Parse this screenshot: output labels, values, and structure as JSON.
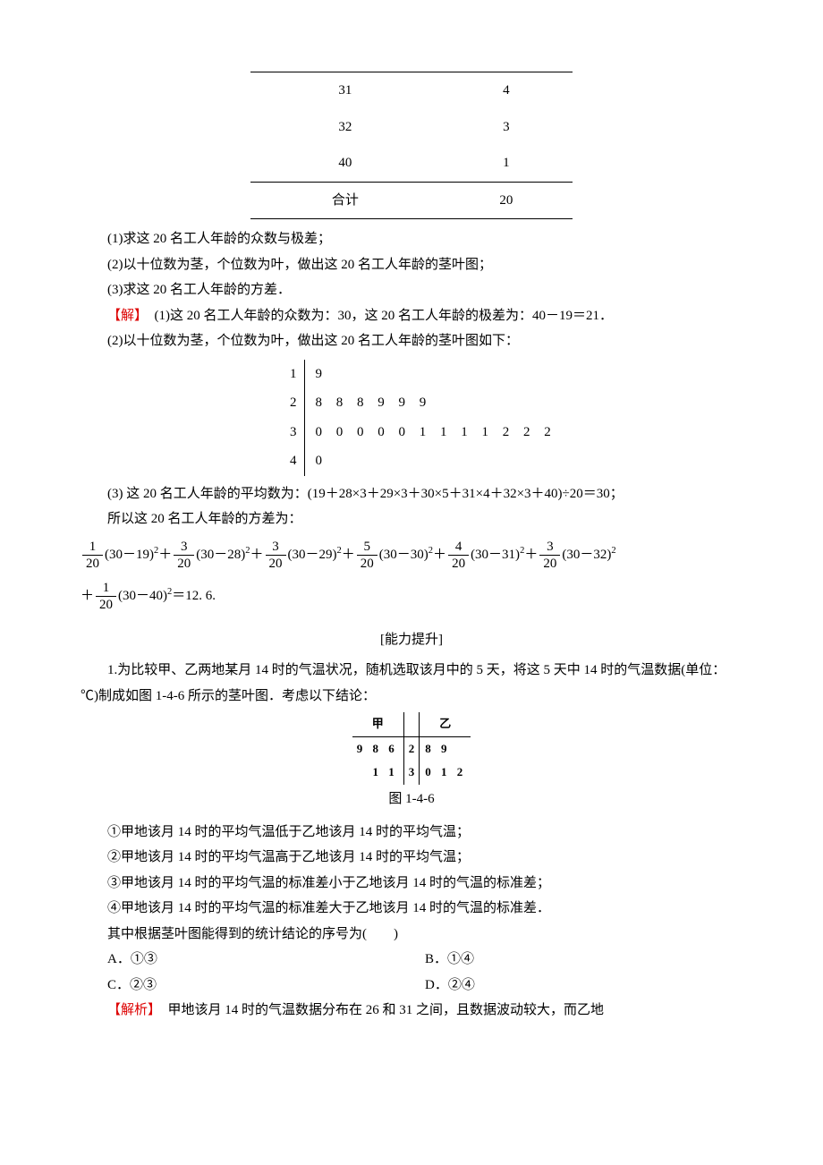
{
  "table": {
    "rows": [
      {
        "age": "31",
        "count": "4"
      },
      {
        "age": "32",
        "count": "3"
      },
      {
        "age": "40",
        "count": "1"
      }
    ],
    "total_label": "合计",
    "total_value": "20"
  },
  "q": {
    "q1": "(1)求这 20 名工人年龄的众数与极差；",
    "q2": "(2)以十位数为茎，个位数为叶，做出这 20 名工人年龄的茎叶图；",
    "q3": "(3)求这 20 名工人年龄的方差．",
    "sol_label": "【解】",
    "sol1": "　(1)这 20 名工人年龄的众数为：30，这 20 名工人年龄的极差为：40－19＝21．",
    "sol2_intro": "(2)以十位数为茎，个位数为叶，做出这 20 名工人年龄的茎叶图如下：",
    "stemleaf": {
      "stems": [
        "1",
        "2",
        "3",
        "4"
      ],
      "leaves": [
        "9",
        "8 8 8 9 9 9",
        "0 0 0 0 0 1 1 1 1 2 2 2",
        "0"
      ]
    },
    "sol3_intro": "(3) 这 20 名工人年龄的平均数为：(19＋28×3＋29×3＋30×5＋31×4＋32×3＋40)÷20＝30；",
    "sol3_line2": "所以这 20 名工人年龄的方差为：",
    "variance_terms": [
      {
        "num": "1",
        "den": "20",
        "expr": "(30－19)"
      },
      {
        "num": "3",
        "den": "20",
        "expr": "(30－28)"
      },
      {
        "num": "3",
        "den": "20",
        "expr": "(30－29)"
      },
      {
        "num": "5",
        "den": "20",
        "expr": "(30－30)"
      },
      {
        "num": "4",
        "den": "20",
        "expr": "(30－31)"
      },
      {
        "num": "3",
        "den": "20",
        "expr": "(30－32)"
      }
    ],
    "variance_last": {
      "num": "1",
      "den": "20",
      "expr": "(30－40)",
      "result": "＝12. 6."
    }
  },
  "section2": {
    "title": "[能力提升]",
    "p1_lead": "1.为比较甲、乙两地某月 14 时的气温状况，随机选取该月中的 5 天，将这 5 天中 14 时的气温数据(单位：℃)制成如图 1-4-6 所示的茎叶图．考虑以下结论：",
    "sl2": {
      "header_left": "甲",
      "header_right": "乙",
      "rows": [
        {
          "left": "9 8 6",
          "stem": "2",
          "right": "8 9"
        },
        {
          "left": "1 1",
          "stem": "3",
          "right": "0 1 2"
        }
      ]
    },
    "figcap": "图 1-4-6",
    "stmts": {
      "s1": "①甲地该月 14 时的平均气温低于乙地该月 14 时的平均气温；",
      "s2": "②甲地该月 14 时的平均气温高于乙地该月 14 时的平均气温；",
      "s3": "③甲地该月 14 时的平均气温的标准差小于乙地该月 14 时的气温的标准差；",
      "s4": "④甲地该月 14 时的平均气温的标准差大于乙地该月 14 时的气温的标准差．"
    },
    "ask": "其中根据茎叶图能得到的统计结论的序号为(　　)",
    "opts": {
      "A": "A．①③",
      "B": "B．①④",
      "C": "C．②③",
      "D": "D．②④"
    },
    "analysis_label": "【解析】",
    "analysis": "　甲地该月 14 时的气温数据分布在 26 和 31 之间，且数据波动较大，而乙地"
  }
}
